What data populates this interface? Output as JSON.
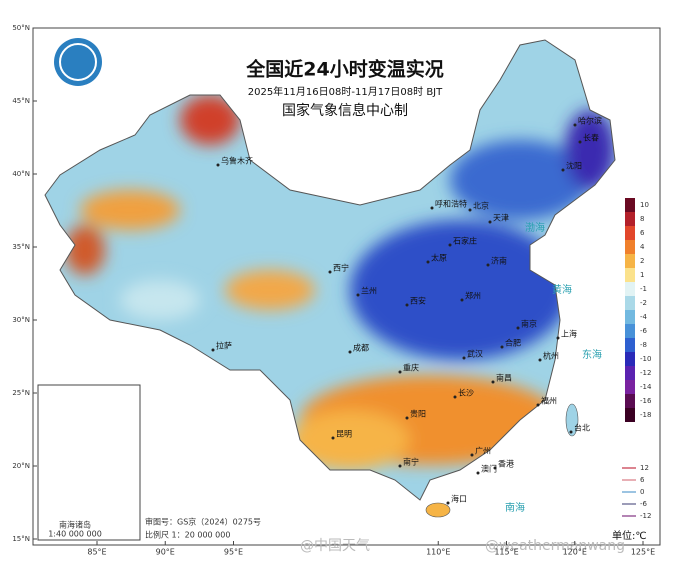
{
  "map": {
    "title": "全国近24小时变温实况",
    "subtitle": "2025年11月16日08时-11月17日08时 BJT",
    "org": "国家气象信息中心制",
    "lat_ticks": [
      {
        "value": 50,
        "label": "50°N"
      },
      {
        "value": 45,
        "label": "45°N"
      },
      {
        "value": 40,
        "label": "40°N"
      },
      {
        "value": 35,
        "label": "35°N"
      },
      {
        "value": 30,
        "label": "30°N"
      },
      {
        "value": 25,
        "label": "25°N"
      },
      {
        "value": 20,
        "label": "20°N"
      },
      {
        "value": 15,
        "label": "15°N"
      }
    ],
    "lon_ticks": [
      {
        "value": 85,
        "label": "85°E"
      },
      {
        "value": 90,
        "label": "90°E"
      },
      {
        "value": 95,
        "label": "95°E"
      },
      {
        "value": 110,
        "label": "110°E"
      },
      {
        "value": 115,
        "label": "115°E"
      },
      {
        "value": 120,
        "label": "120°E"
      },
      {
        "value": 125,
        "label": "125°E"
      }
    ],
    "legend": [
      {
        "value": 10,
        "color": "#6a0a22"
      },
      {
        "value": 8,
        "color": "#b3202a"
      },
      {
        "value": 6,
        "color": "#e2472b"
      },
      {
        "value": 4,
        "color": "#f0802c"
      },
      {
        "value": 2,
        "color": "#f6b446"
      },
      {
        "value": 1,
        "color": "#fbe28c"
      },
      {
        "value": -1,
        "color": "#e2f3f4"
      },
      {
        "value": -2,
        "color": "#aad9e8"
      },
      {
        "value": -4,
        "color": "#72b9e0"
      },
      {
        "value": -6,
        "color": "#4891d8"
      },
      {
        "value": -8,
        "color": "#2e60d0"
      },
      {
        "value": -10,
        "color": "#2a2ab8"
      },
      {
        "value": -12,
        "color": "#5a22b0"
      },
      {
        "value": -14,
        "color": "#7a22a0"
      },
      {
        "value": -16,
        "color": "#5a0c52"
      },
      {
        "value": -18,
        "color": "#3a0022"
      }
    ],
    "contours": [
      {
        "value": 12,
        "color": "#d05a6a"
      },
      {
        "value": 6,
        "color": "#e0949c"
      },
      {
        "value": 0,
        "color": "#7ab0d8"
      },
      {
        "value": -6,
        "color": "#7a7aa0"
      },
      {
        "value": -12,
        "color": "#9a5a9a"
      }
    ],
    "unit": "单位:℃",
    "cities": [
      "乌鲁木齐",
      "呼和浩特",
      "西宁",
      "兰州",
      "拉萨",
      "成都",
      "重庆",
      "贵阳",
      "昆明",
      "南宁",
      "长沙",
      "武汉",
      "南昌",
      "福州",
      "台北",
      "广州",
      "香港",
      "澳门",
      "海口",
      "杭州",
      "上海",
      "南京",
      "合肥",
      "郑州",
      "济南",
      "石家庄",
      "北京",
      "天津",
      "太原",
      "西安",
      "沈阳",
      "长春",
      "哈尔滨"
    ],
    "seas": [
      "渤海",
      "黄海",
      "东海",
      "南海"
    ],
    "inset": {
      "title": "南海诸岛",
      "scale": "1:40 000 000"
    },
    "notes": [
      "审图号：GS京（2024）0275号",
      "比例尺 1：20 000 000"
    ],
    "watermarks": [
      "@中国天气",
      "@weathermanwang"
    ]
  }
}
